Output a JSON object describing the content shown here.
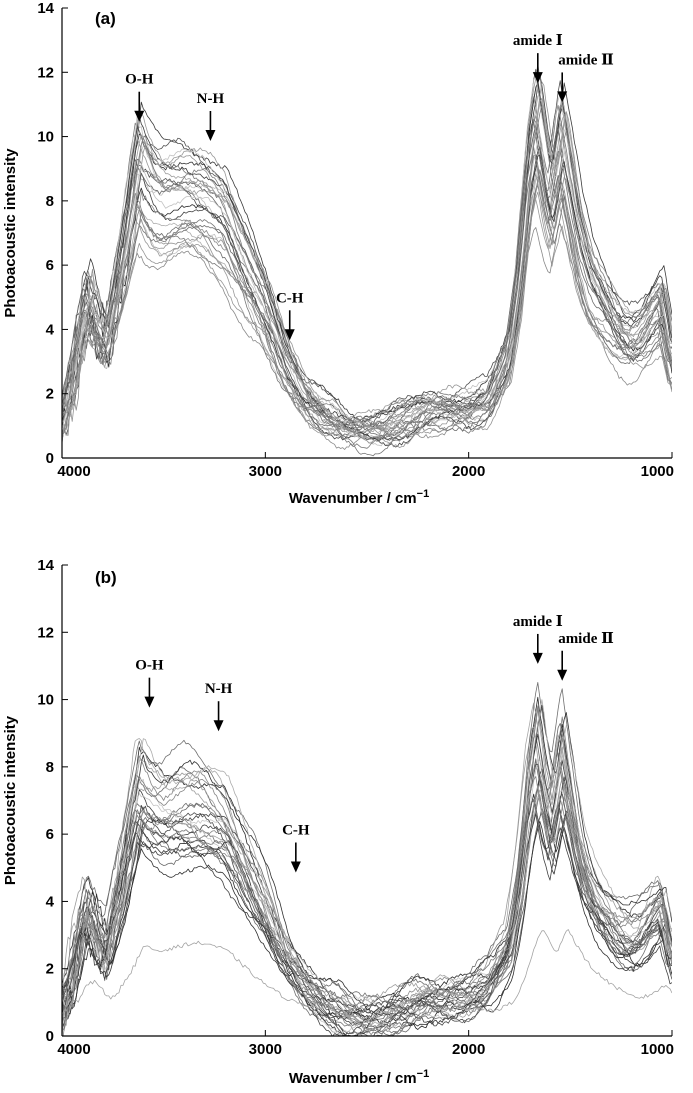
{
  "chart_data": [
    {
      "type": "line",
      "panel_label": "(a)",
      "xlabel": "Wavenumber / cm",
      "xlabel_sup": "−1",
      "ylabel": "Photoacoustic intensity",
      "xlim": [
        4000,
        1000
      ],
      "ylim": [
        0,
        14
      ],
      "x_ticks": [
        4000,
        3000,
        2000,
        1000
      ],
      "y_ticks": [
        0,
        2,
        4,
        6,
        8,
        10,
        12,
        14
      ],
      "n_series": 32,
      "representative_profile": {
        "x": [
          4000,
          3950,
          3900,
          3870,
          3820,
          3780,
          3700,
          3620,
          3560,
          3500,
          3400,
          3300,
          3200,
          3100,
          3000,
          2900,
          2800,
          2700,
          2600,
          2500,
          2400,
          2300,
          2200,
          2100,
          2000,
          1900,
          1800,
          1750,
          1700,
          1660,
          1620,
          1590,
          1540,
          1500,
          1450,
          1400,
          1350,
          1300,
          1250,
          1200,
          1150,
          1100,
          1050,
          1000
        ],
        "y": [
          1.5,
          2.6,
          4.5,
          5.2,
          4.2,
          3.6,
          6.2,
          9.4,
          8.6,
          8.2,
          8.3,
          8.1,
          7.6,
          6.1,
          4.7,
          3.0,
          1.9,
          1.3,
          0.9,
          0.8,
          0.9,
          1.1,
          1.4,
          1.5,
          1.5,
          1.8,
          3.2,
          5.5,
          9.0,
          10.5,
          8.9,
          8.0,
          10.0,
          8.6,
          6.8,
          5.6,
          5.0,
          4.4,
          3.9,
          3.7,
          3.9,
          4.4,
          4.8,
          3.0
        ]
      },
      "annotations": [
        {
          "label": "O-H",
          "x": 3620,
          "y_tip": 10.4
        },
        {
          "label": "N-H",
          "x": 3270,
          "y_tip": 9.8
        },
        {
          "label": "C-H",
          "x": 2880,
          "y_tip": 3.6
        },
        {
          "label": "amide Ⅰ",
          "x": 1660,
          "y_tip": 11.6
        },
        {
          "label": "amide Ⅱ",
          "x": 1540,
          "y_tip": 11.0
        }
      ]
    },
    {
      "type": "line",
      "panel_label": "(b)",
      "xlabel": "Wavenumber / cm",
      "xlabel_sup": "−1",
      "ylabel": "Photoacoustic intensity",
      "xlim": [
        4000,
        1000
      ],
      "ylim": [
        0,
        14
      ],
      "x_ticks": [
        4000,
        3000,
        2000,
        1000
      ],
      "y_ticks": [
        0,
        2,
        4,
        6,
        8,
        10,
        12,
        14
      ],
      "n_series": 32,
      "representative_profile": {
        "x": [
          4000,
          3950,
          3900,
          3870,
          3820,
          3780,
          3700,
          3620,
          3560,
          3500,
          3400,
          3300,
          3200,
          3100,
          3000,
          2900,
          2800,
          2700,
          2600,
          2500,
          2400,
          2300,
          2200,
          2100,
          2000,
          1900,
          1800,
          1750,
          1700,
          1660,
          1620,
          1590,
          1540,
          1500,
          1450,
          1400,
          1350,
          1300,
          1250,
          1200,
          1150,
          1100,
          1050,
          1000
        ],
        "y": [
          1.3,
          2.2,
          3.8,
          4.3,
          3.3,
          2.9,
          5.2,
          7.9,
          7.4,
          7.1,
          7.2,
          7.1,
          6.7,
          5.4,
          4.1,
          2.6,
          1.6,
          1.0,
          0.7,
          0.6,
          0.7,
          0.9,
          1.2,
          1.3,
          1.3,
          1.6,
          2.8,
          4.8,
          7.8,
          9.2,
          7.6,
          6.8,
          8.7,
          7.3,
          5.6,
          4.6,
          4.0,
          3.6,
          3.2,
          3.1,
          3.3,
          3.8,
          4.2,
          2.6
        ]
      },
      "annotations": [
        {
          "label": "O-H",
          "x": 3570,
          "y_tip": 9.7
        },
        {
          "label": "N-H",
          "x": 3230,
          "y_tip": 9.0
        },
        {
          "label": "C-H",
          "x": 2850,
          "y_tip": 4.8
        },
        {
          "label": "amide Ⅰ",
          "x": 1660,
          "y_tip": 11.0
        },
        {
          "label": "amide Ⅱ",
          "x": 1540,
          "y_tip": 10.5
        }
      ]
    }
  ]
}
